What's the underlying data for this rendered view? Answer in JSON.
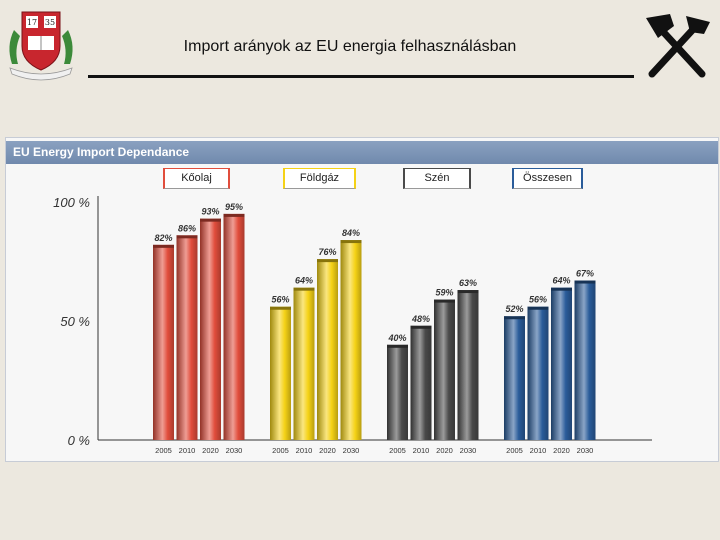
{
  "slide": {
    "title": "Import arányok az EU energia felhasználásban",
    "logo_text": "17 35"
  },
  "chart_data": {
    "type": "bar",
    "title": "EU Energy Import Dependance",
    "categories": [
      "2005",
      "2010",
      "2020",
      "2030"
    ],
    "series": [
      {
        "name": "Kőolaj",
        "values": [
          82,
          86,
          93,
          95
        ],
        "color": "#e14d3c"
      },
      {
        "name": "Földgáz",
        "values": [
          56,
          64,
          76,
          84
        ],
        "color": "#f5d216"
      },
      {
        "name": "Szén",
        "values": [
          40,
          48,
          59,
          63
        ],
        "color": "#4a4a4a"
      },
      {
        "name": "Összesen",
        "values": [
          52,
          56,
          64,
          67
        ],
        "color": "#2a5c9a"
      }
    ],
    "yticks": [
      "0 %",
      "50 %",
      "100 %"
    ],
    "ylim": [
      0,
      100
    ],
    "data_label_suffix": "%"
  }
}
